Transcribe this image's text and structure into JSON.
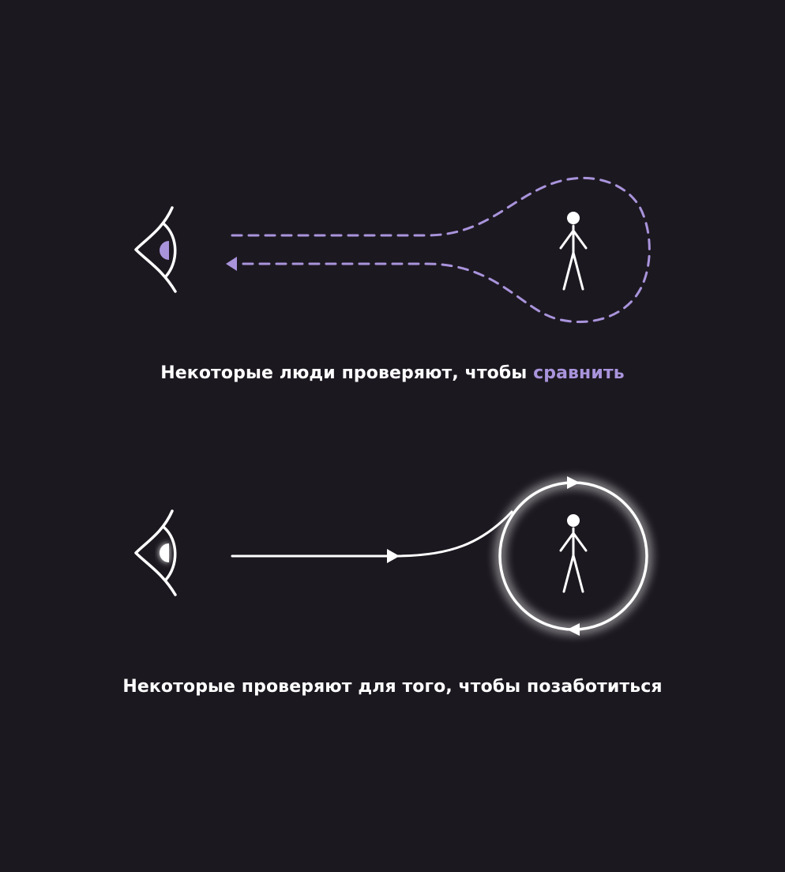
{
  "colors": {
    "background": "#1c1820",
    "accent": "#a994dc",
    "foreground": "#ffffff"
  },
  "diagrams": [
    {
      "name": "compare",
      "style": "dashed",
      "caption_main": "Некоторые люди проверяют, чтобы ",
      "caption_accent": "сравнить"
    },
    {
      "name": "care",
      "style": "solid-glow",
      "caption_main": "Некоторые проверяют для того, чтобы позаботиться"
    }
  ],
  "icons": [
    "eye-icon",
    "person-icon",
    "arrow-icon"
  ]
}
